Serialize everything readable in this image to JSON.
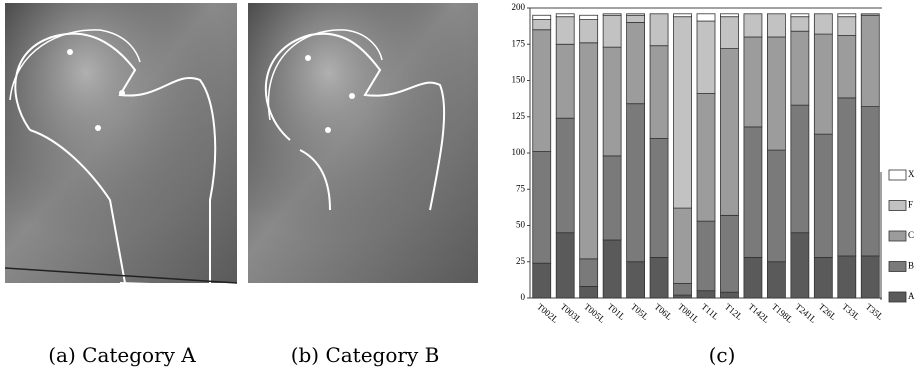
{
  "captions": [
    "(a) Category A",
    "(b) Category B",
    "(c)"
  ],
  "chart_data": {
    "type": "stacked-bar",
    "categories": [
      "T002L",
      "T003L",
      "T005L",
      "T01L",
      "T05L",
      "T06L",
      "T081L",
      "T11L",
      "T12L",
      "T142L",
      "T198L",
      "T241L",
      "T26L",
      "T33L",
      "T35L"
    ],
    "series": [
      {
        "name": "A",
        "color": "#5a5a5a",
        "values": [
          24,
          45,
          8,
          40,
          25,
          28,
          2,
          5,
          4,
          28,
          25,
          45,
          28,
          29,
          29
        ]
      },
      {
        "name": "B",
        "color": "#7a7a7a",
        "values": [
          77,
          79,
          19,
          58,
          109,
          82,
          8,
          48,
          53,
          90,
          77,
          88,
          85,
          109,
          103
        ]
      },
      {
        "name": "C",
        "color": "#9c9c9c",
        "values": [
          84,
          51,
          149,
          75,
          56,
          64,
          52,
          88,
          115,
          62,
          78,
          51,
          69,
          43,
          63
        ]
      },
      {
        "name": "F",
        "color": "#c2c2c2",
        "values": [
          7,
          19,
          16,
          22,
          5,
          22,
          132,
          50,
          22,
          16,
          16,
          10,
          14,
          13,
          1
        ]
      },
      {
        "name": "X",
        "color": "#ffffff",
        "values": [
          3,
          2,
          3,
          1,
          1,
          0,
          2,
          5,
          2,
          0,
          0,
          2,
          0,
          2,
          0
        ]
      }
    ],
    "ylim": [
      0,
      200
    ],
    "yticks": [
      0,
      25,
      50,
      75,
      100,
      125,
      150,
      175,
      200
    ]
  }
}
